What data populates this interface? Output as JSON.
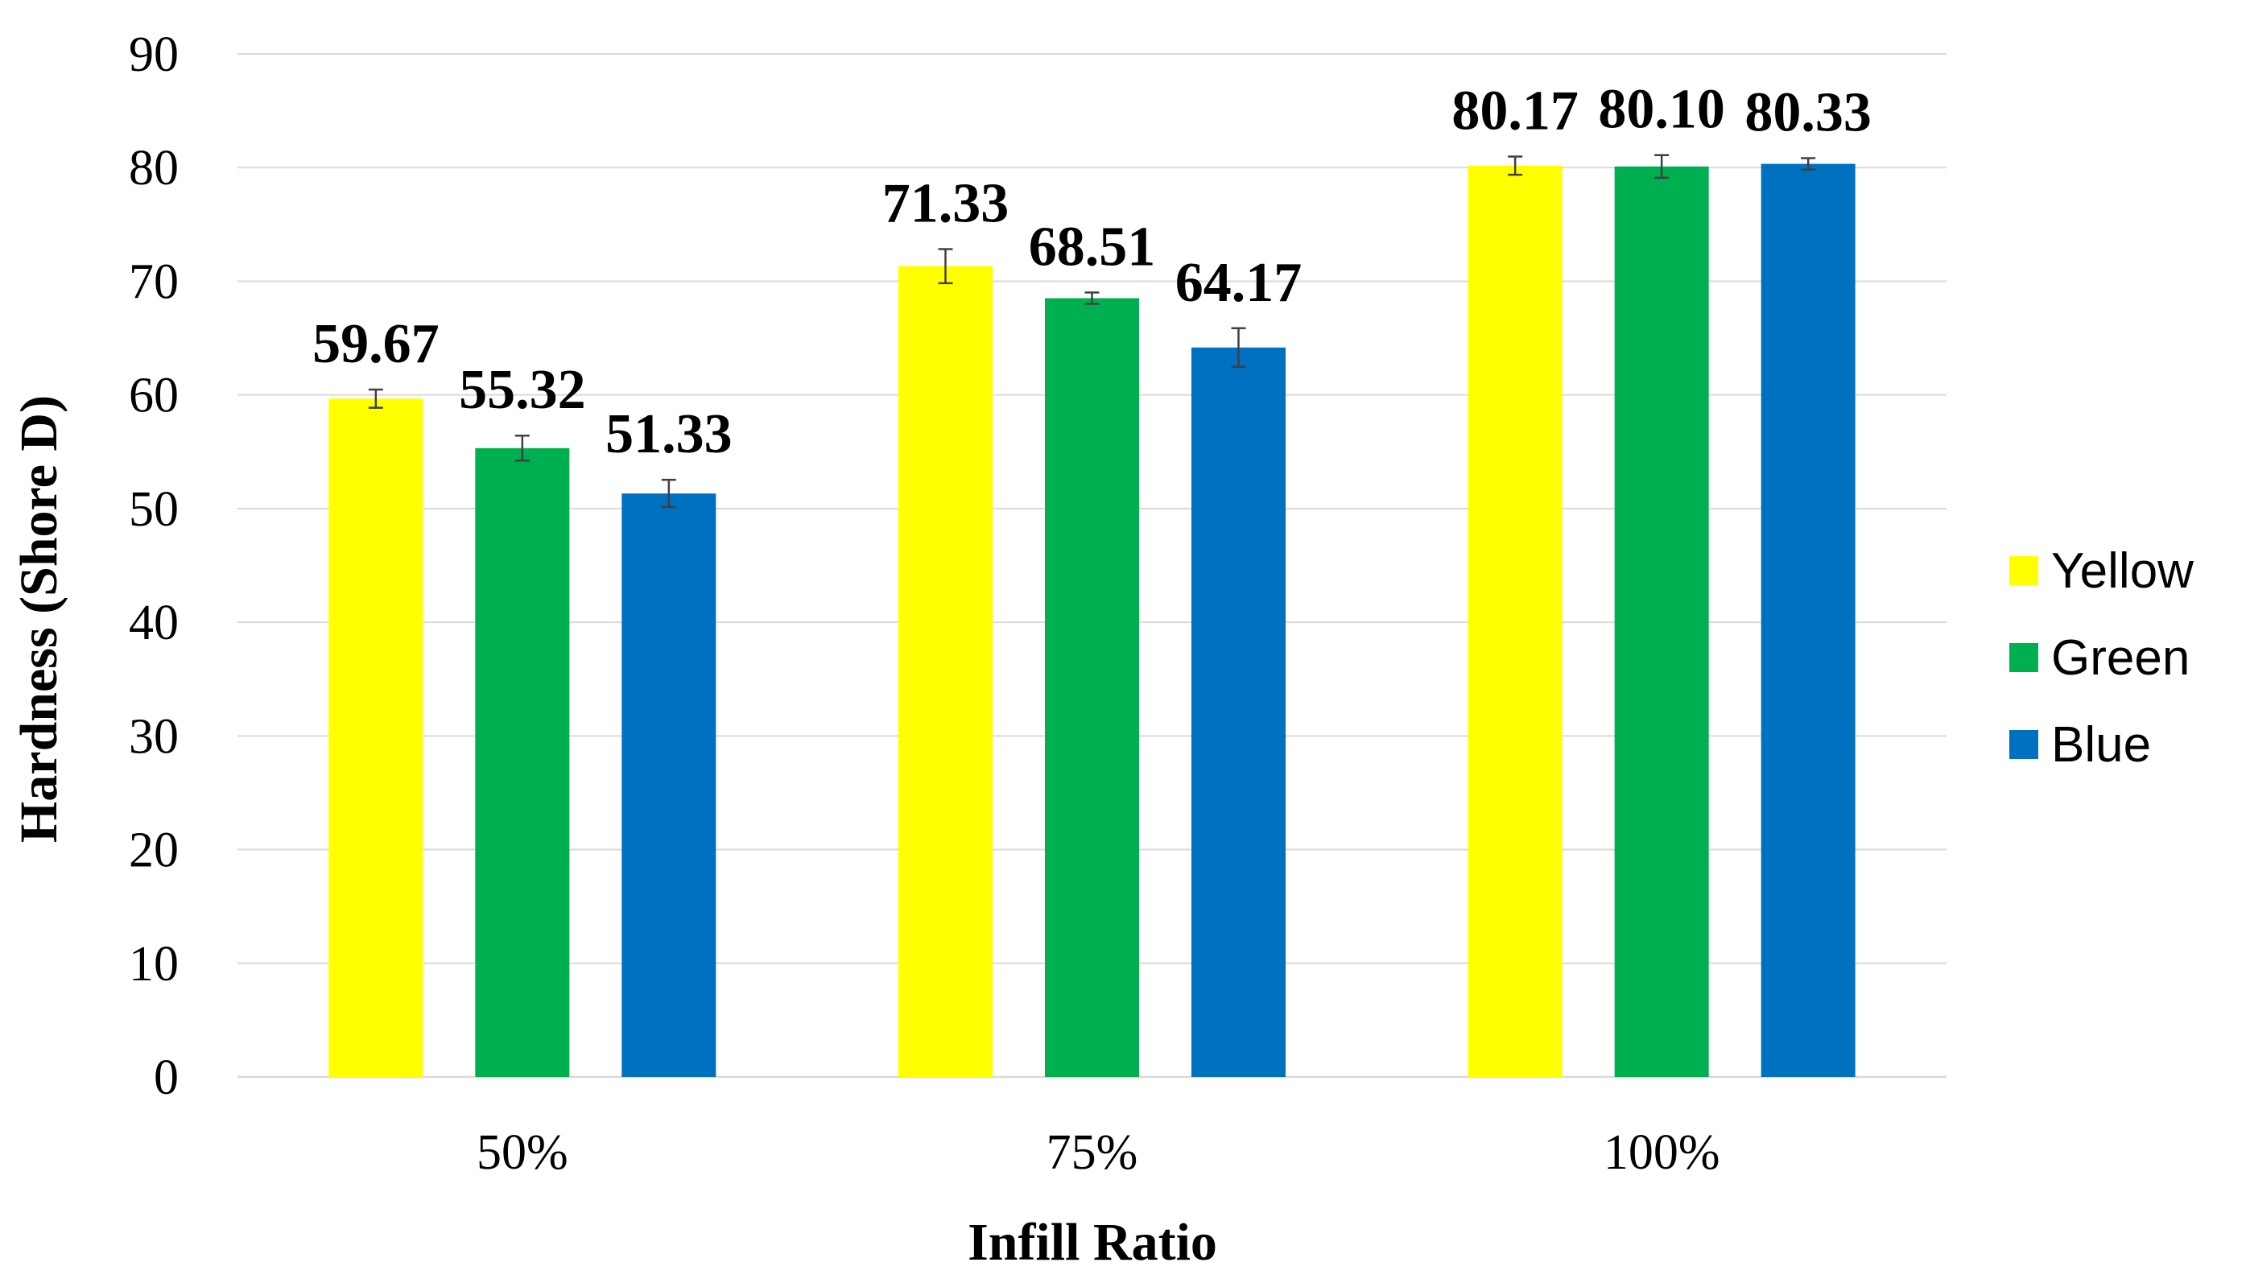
{
  "chart_data": {
    "type": "bar",
    "title": "",
    "xlabel": "Infill Ratio",
    "ylabel": "Hardness (Shore D)",
    "ylim": [
      0,
      90
    ],
    "yticks": [
      0,
      10,
      20,
      30,
      40,
      50,
      60,
      70,
      80,
      90
    ],
    "grid": true,
    "legend_position": "right",
    "categories": [
      "50%",
      "75%",
      "100%"
    ],
    "series": [
      {
        "name": "Yellow",
        "color": "#FFFF00",
        "values": [
          59.67,
          71.33,
          80.17
        ],
        "labels": [
          "59.67",
          "71.33",
          "80.17"
        ],
        "errors": [
          0.8,
          1.5,
          0.8
        ]
      },
      {
        "name": "Green",
        "color": "#00B050",
        "values": [
          55.32,
          68.51,
          80.1
        ],
        "labels": [
          "55.32",
          "68.51",
          "80.10"
        ],
        "errors": [
          1.1,
          0.5,
          1.0
        ]
      },
      {
        "name": "Blue",
        "color": "#0070C0",
        "values": [
          51.33,
          64.17,
          80.33
        ],
        "labels": [
          "51.33",
          "64.17",
          "80.33"
        ],
        "errors": [
          1.2,
          1.7,
          0.5
        ]
      }
    ]
  }
}
